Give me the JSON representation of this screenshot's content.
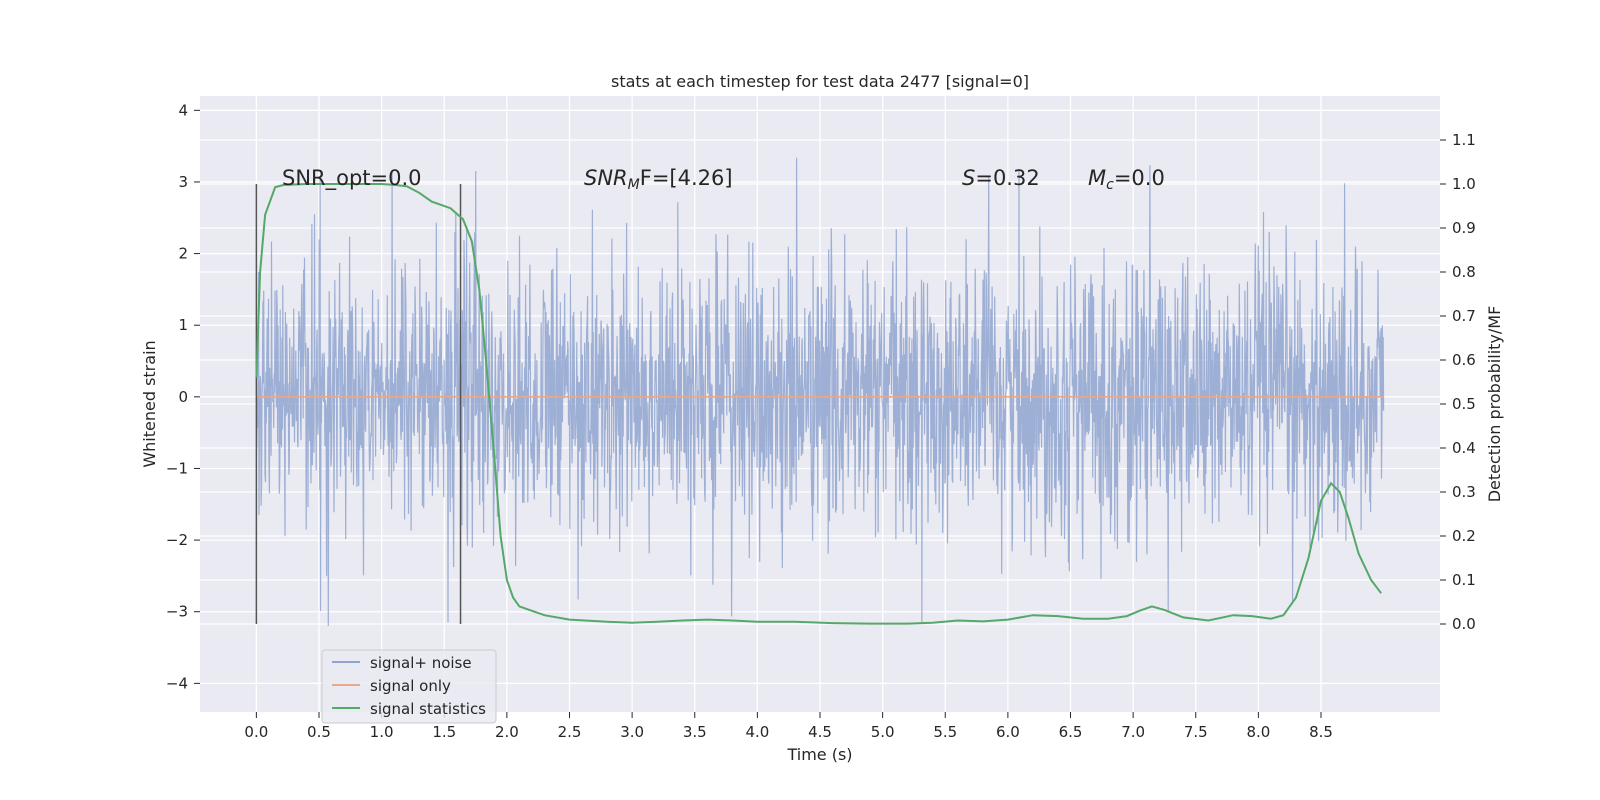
{
  "chart_data": {
    "type": "line",
    "title": "stats at each timestep for test data 2477 [signal=0]",
    "xlabel": "Time (s)",
    "ylabel": "Whitened strain",
    "ylabel_right": "Detection probability/MF",
    "xlim": [
      -0.45,
      9.45
    ],
    "ylim": [
      -4.4,
      4.2
    ],
    "ylim_right": [
      -0.2,
      1.2
    ],
    "x_ticks": [
      "0.0",
      "0.5",
      "1.0",
      "1.5",
      "2.0",
      "2.5",
      "3.0",
      "3.5",
      "4.0",
      "4.5",
      "5.0",
      "5.5",
      "6.0",
      "6.5",
      "7.0",
      "7.5",
      "8.0",
      "8.5"
    ],
    "y_ticks": [
      "4",
      "3",
      "2",
      "1",
      "0",
      "−1",
      "−2",
      "−3",
      "−4"
    ],
    "y_ticks_right": [
      "1.1",
      "1.0",
      "0.9",
      "0.8",
      "0.7",
      "0.6",
      "0.5",
      "0.4",
      "0.3",
      "0.2",
      "0.1",
      "0.0"
    ],
    "grid": true,
    "legend_position": "lower-left",
    "annotations": {
      "snr_opt": "SNR_opt=0.0",
      "snr_mf_main": "SNR",
      "snr_mf_sub": "M",
      "snr_mf_rest": "F=[4.26]",
      "s_main": "S",
      "s_rest": "=0.32",
      "mc_main": "M",
      "mc_sub": "c",
      "mc_rest": "=0.0"
    },
    "vlines": [
      0.0,
      1.63
    ],
    "series": [
      {
        "name": "signal+ noise",
        "axis": "left",
        "color": "#8fa4cf",
        "noise_range": [
          0.0,
          9.0
        ],
        "noise_envelope": [
          -3.2,
          3.8
        ]
      },
      {
        "name": "signal only",
        "axis": "left",
        "color": "#e8a98b",
        "x": [
          0.0,
          9.0
        ],
        "y": [
          0.0,
          0.0
        ]
      },
      {
        "name": "signal statistics",
        "axis": "right",
        "color": "#55a868",
        "x": [
          0.0,
          0.03,
          0.07,
          0.15,
          0.22,
          0.4,
          0.6,
          0.8,
          1.0,
          1.1,
          1.2,
          1.3,
          1.4,
          1.55,
          1.65,
          1.72,
          1.78,
          1.84,
          1.9,
          1.95,
          2.0,
          2.05,
          2.1,
          2.2,
          2.3,
          2.5,
          2.8,
          3.0,
          3.2,
          3.4,
          3.6,
          3.8,
          4.0,
          4.3,
          4.6,
          4.9,
          5.2,
          5.4,
          5.6,
          5.8,
          6.0,
          6.2,
          6.4,
          6.6,
          6.8,
          6.95,
          7.05,
          7.15,
          7.25,
          7.4,
          7.6,
          7.8,
          7.95,
          8.1,
          8.2,
          8.3,
          8.4,
          8.5,
          8.58,
          8.65,
          8.72,
          8.8,
          8.9,
          8.98
        ],
        "y": [
          0.56,
          0.8,
          0.93,
          0.993,
          0.998,
          1.0,
          1.0,
          1.0,
          1.0,
          0.998,
          0.995,
          0.98,
          0.96,
          0.945,
          0.92,
          0.87,
          0.76,
          0.58,
          0.38,
          0.2,
          0.1,
          0.06,
          0.04,
          0.03,
          0.02,
          0.01,
          0.005,
          0.003,
          0.005,
          0.008,
          0.01,
          0.008,
          0.005,
          0.005,
          0.002,
          0.001,
          0.001,
          0.003,
          0.008,
          0.006,
          0.01,
          0.02,
          0.018,
          0.012,
          0.012,
          0.018,
          0.03,
          0.04,
          0.032,
          0.015,
          0.008,
          0.02,
          0.018,
          0.012,
          0.02,
          0.06,
          0.15,
          0.28,
          0.32,
          0.3,
          0.24,
          0.16,
          0.1,
          0.07
        ]
      }
    ]
  }
}
